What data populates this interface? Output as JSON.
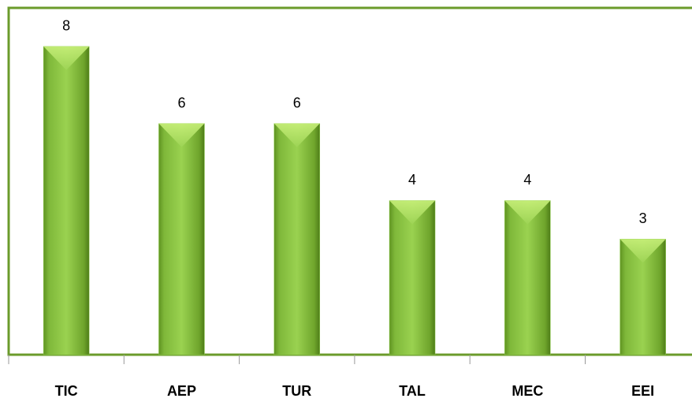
{
  "chart_data": {
    "type": "bar",
    "categories": [
      "TIC",
      "AEP",
      "TUR",
      "TAL",
      "MEC",
      "EEI"
    ],
    "values": [
      8,
      6,
      6,
      4,
      4,
      3
    ],
    "color": "#92d050",
    "ylim": [
      0,
      9
    ]
  }
}
